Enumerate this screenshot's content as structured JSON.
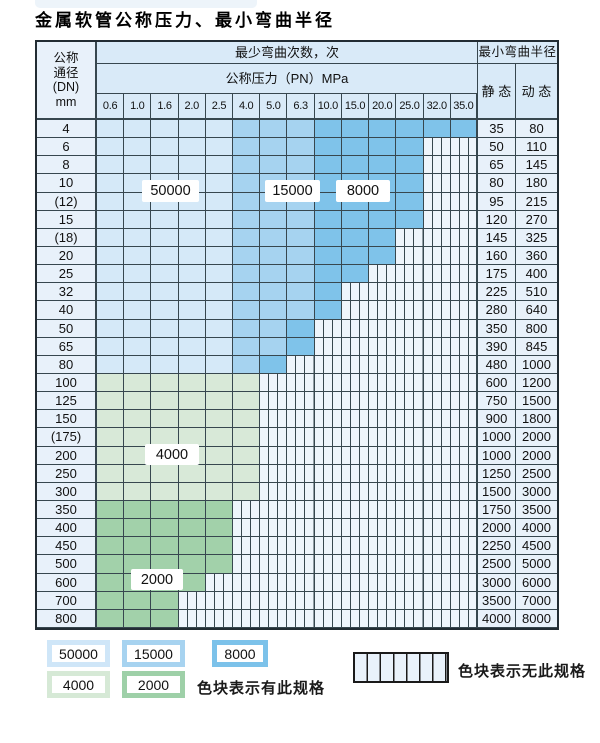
{
  "title": "金属软管公称压力、最小弯曲半径",
  "table": {
    "corner_header": [
      "公称",
      "通径",
      "(DN)",
      "mm"
    ],
    "top_header": "最少弯曲次数，次",
    "pressure_header": "公称压力（PN）MPa",
    "radius_header": "最小弯曲半径",
    "static_label": "静 态",
    "dynamic_label": "动 态",
    "pressure_columns": [
      "0.6",
      "1.0",
      "1.6",
      "2.0",
      "2.5",
      "4.0",
      "5.0",
      "6.3",
      "10.0",
      "15.0",
      "20.0",
      "25.0",
      "32.0",
      "35.0"
    ],
    "cycle_labels": [
      "50000",
      "15000",
      "8000",
      "4000",
      "2000"
    ],
    "rows": [
      {
        "dn": "4",
        "cols": 14,
        "shade": "blue",
        "static": "35",
        "dynamic": "80"
      },
      {
        "dn": "6",
        "cols": 12,
        "shade": "blue",
        "static": "50",
        "dynamic": "110"
      },
      {
        "dn": "8",
        "cols": 12,
        "shade": "blue",
        "static": "65",
        "dynamic": "145"
      },
      {
        "dn": "10",
        "cols": 12,
        "shade": "blue",
        "static": "80",
        "dynamic": "180"
      },
      {
        "dn": "(12)",
        "cols": 12,
        "shade": "blue",
        "static": "95",
        "dynamic": "215"
      },
      {
        "dn": "15",
        "cols": 12,
        "shade": "blue",
        "static": "120",
        "dynamic": "270"
      },
      {
        "dn": "(18)",
        "cols": 11,
        "shade": "blue",
        "static": "145",
        "dynamic": "325"
      },
      {
        "dn": "20",
        "cols": 11,
        "shade": "blue",
        "static": "160",
        "dynamic": "360"
      },
      {
        "dn": "25",
        "cols": 10,
        "shade": "blue",
        "static": "175",
        "dynamic": "400"
      },
      {
        "dn": "32",
        "cols": 9,
        "shade": "blue",
        "static": "225",
        "dynamic": "510"
      },
      {
        "dn": "40",
        "cols": 9,
        "shade": "blue",
        "static": "280",
        "dynamic": "640"
      },
      {
        "dn": "50",
        "cols": 8,
        "shade": "blue",
        "static": "350",
        "dynamic": "800"
      },
      {
        "dn": "65",
        "cols": 8,
        "shade": "blue",
        "static": "390",
        "dynamic": "845"
      },
      {
        "dn": "80",
        "cols": 7,
        "shade": "blue",
        "static": "480",
        "dynamic": "1000"
      },
      {
        "dn": "100",
        "cols": 6,
        "shade": "green-4000",
        "static": "600",
        "dynamic": "1200"
      },
      {
        "dn": "125",
        "cols": 6,
        "shade": "green-4000",
        "static": "750",
        "dynamic": "1500"
      },
      {
        "dn": "150",
        "cols": 6,
        "shade": "green-4000",
        "static": "900",
        "dynamic": "1800"
      },
      {
        "dn": "(175)",
        "cols": 6,
        "shade": "green-4000",
        "static": "1000",
        "dynamic": "2000"
      },
      {
        "dn": "200",
        "cols": 6,
        "shade": "green-4000",
        "static": "1000",
        "dynamic": "2000"
      },
      {
        "dn": "250",
        "cols": 6,
        "shade": "green-4000",
        "static": "1250",
        "dynamic": "2500"
      },
      {
        "dn": "300",
        "cols": 6,
        "shade": "green-4000",
        "static": "1500",
        "dynamic": "3000"
      },
      {
        "dn": "350",
        "cols": 5,
        "shade": "green-2000",
        "static": "1750",
        "dynamic": "3500"
      },
      {
        "dn": "400",
        "cols": 5,
        "shade": "green-2000",
        "static": "2000",
        "dynamic": "4000"
      },
      {
        "dn": "450",
        "cols": 5,
        "shade": "green-2000",
        "static": "2250",
        "dynamic": "4500"
      },
      {
        "dn": "500",
        "cols": 5,
        "shade": "green-2000",
        "static": "2500",
        "dynamic": "5000"
      },
      {
        "dn": "600",
        "cols": 4,
        "shade": "green-2000",
        "static": "3000",
        "dynamic": "6000"
      },
      {
        "dn": "700",
        "cols": 3,
        "shade": "green-2000",
        "static": "3500",
        "dynamic": "7000"
      },
      {
        "dn": "800",
        "cols": 3,
        "shade": "green-2000",
        "static": "4000",
        "dynamic": "8000"
      }
    ]
  },
  "legend": {
    "swatches": [
      {
        "label": "50000",
        "shade": "blue-light"
      },
      {
        "label": "15000",
        "shade": "blue-medium"
      },
      {
        "label": "8000",
        "shade": "blue-dark"
      },
      {
        "label": "4000",
        "shade": "green-light"
      },
      {
        "label": "2000",
        "shade": "green-medium"
      }
    ],
    "has_spec_text": "色块表示有此规格",
    "no_spec_text": "色块表示无此规格"
  },
  "colors": {
    "blue_light": "#d5e9f8",
    "blue_medium": "#a6d3f0",
    "blue_dark": "#7fc3ea",
    "green_light": "#d8e9d8",
    "green_medium": "#a2d1aa",
    "nospec_bg": "#eef5fc",
    "grid_line": "#37474f"
  }
}
